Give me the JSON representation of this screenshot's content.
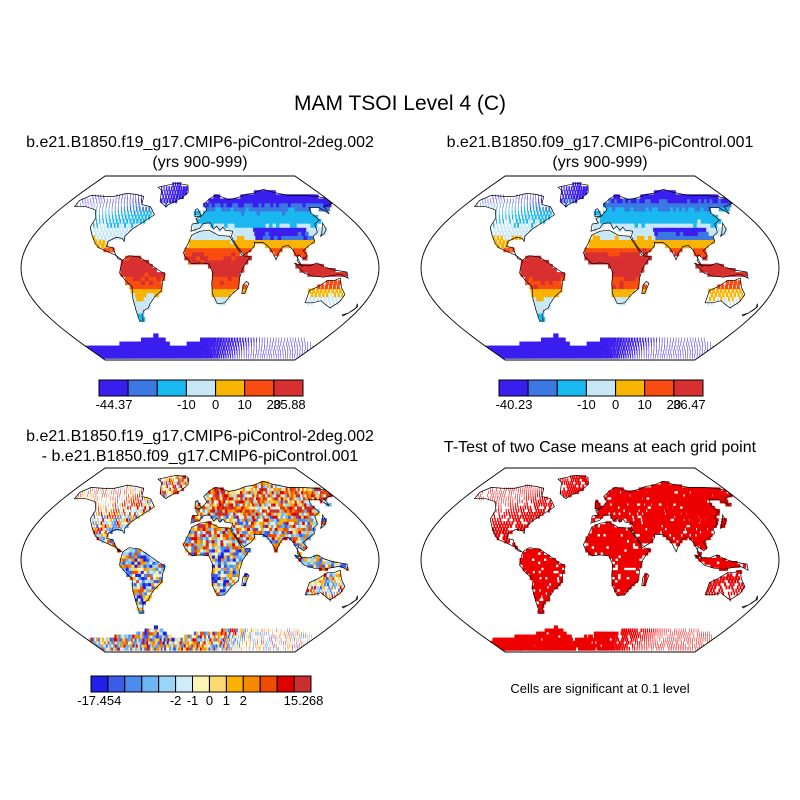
{
  "main_title": "MAM TSOI Level 4 (C)",
  "panels": [
    {
      "title_line1": "b.e21.B1850.f19_g17.CMIP6-piControl-2deg.002",
      "title_line2": "(yrs 900-999)",
      "style": "abs",
      "colorbar": {
        "colors": [
          "#3a1ef0",
          "#3b78e2",
          "#1ab8f0",
          "#c8e8f8",
          "#f8b400",
          "#f84c10",
          "#d83030"
        ],
        "labels": [
          "-44.37",
          "-10",
          "0",
          "10",
          "20",
          "35.88"
        ]
      }
    },
    {
      "title_line1": "b.e21.B1850.f09_g17.CMIP6-piControl.001",
      "title_line2": "(yrs 900-999)",
      "style": "abs",
      "colorbar": {
        "colors": [
          "#3a1ef0",
          "#3b78e2",
          "#1ab8f0",
          "#c8e8f8",
          "#f8b400",
          "#f84c10",
          "#d83030"
        ],
        "labels": [
          "-40.23",
          "-10",
          "0",
          "10",
          "20",
          "36.47"
        ]
      }
    },
    {
      "title_line1": "b.e21.B1850.f19_g17.CMIP6-piControl-2deg.002",
      "title_line2": "- b.e21.B1850.f09_g17.CMIP6-piControl.001",
      "style": "diff",
      "colorbar": {
        "colors": [
          "#2020e8",
          "#3a5ce8",
          "#4c8cf0",
          "#6cb4f4",
          "#9cd4f8",
          "#d0ecf8",
          "#fcf4b4",
          "#fcd870",
          "#fcb000",
          "#f88800",
          "#f04c00",
          "#e00000",
          "#c83030"
        ],
        "labels": [
          "-17.454",
          "-2",
          "-1",
          "0",
          "1",
          "2",
          "15.268"
        ]
      }
    },
    {
      "title_line1": "T-Test of two Case means at each grid point",
      "title_line2": "",
      "style": "ttest",
      "note": "Cells are significant at 0.1 level"
    }
  ]
}
